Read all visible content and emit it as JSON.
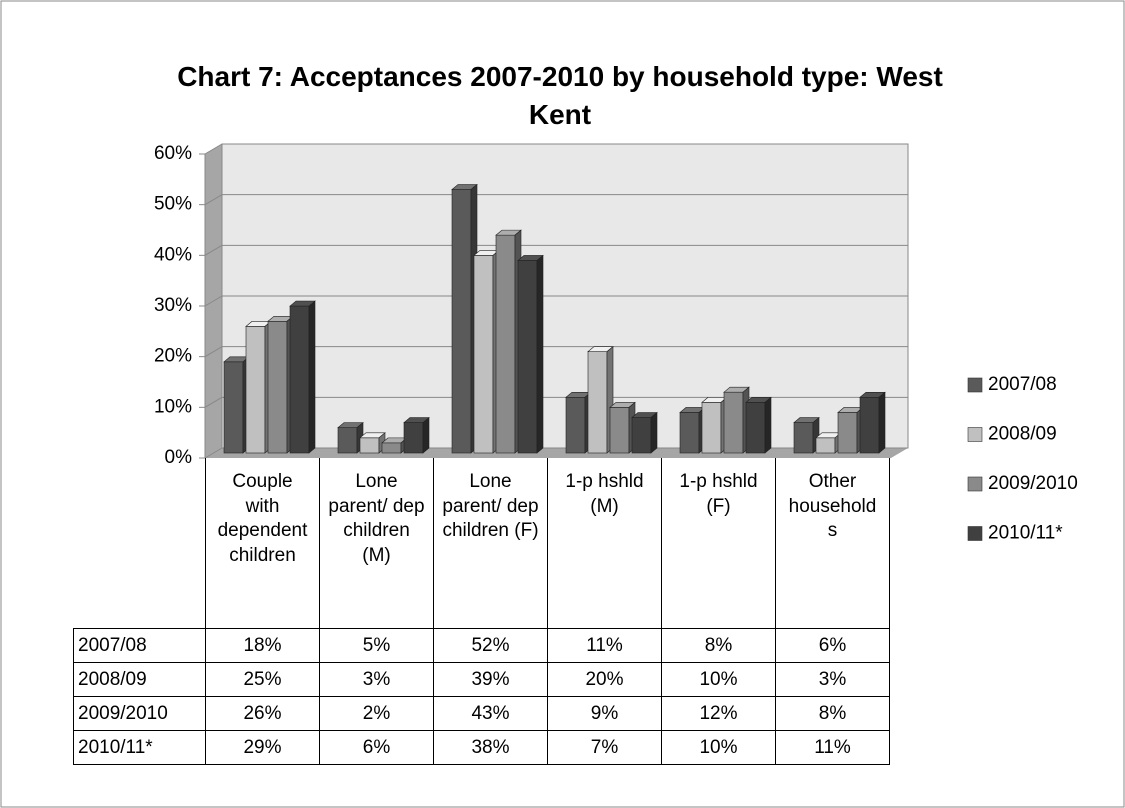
{
  "chart_data": {
    "type": "bar3d",
    "title": "Chart 7: Acceptances 2007-2010 by household type: West Kent",
    "categories": [
      "Couple with dependent children",
      "Lone parent/ dep children (M)",
      "Lone parent/ dep children (F)",
      "1-p hshld (M)",
      "1-p hshld (F)",
      "Other households"
    ],
    "series": [
      {
        "name": "2007/08",
        "color": "#5a5a5a",
        "values": [
          18,
          5,
          52,
          11,
          8,
          6
        ],
        "value_labels": [
          "18%",
          "5%",
          "52%",
          "11%",
          "8%",
          "6%"
        ]
      },
      {
        "name": "2008/09",
        "color": "#c0c0c0",
        "values": [
          25,
          3,
          39,
          20,
          10,
          3
        ],
        "value_labels": [
          "25%",
          "3%",
          "39%",
          "20%",
          "10%",
          "3%"
        ]
      },
      {
        "name": "2009/2010",
        "color": "#8a8a8a",
        "values": [
          26,
          2,
          43,
          9,
          12,
          8
        ],
        "value_labels": [
          "26%",
          "2%",
          "43%",
          "9%",
          "12%",
          "8%"
        ]
      },
      {
        "name": "2010/11*",
        "color": "#404040",
        "values": [
          29,
          6,
          38,
          7,
          10,
          11
        ],
        "value_labels": [
          "29%",
          "6%",
          "38%",
          "7%",
          "10%",
          "11%"
        ]
      }
    ],
    "ylim": [
      0,
      60
    ],
    "yticks": [
      {
        "value": 0,
        "label": "0%"
      },
      {
        "value": 10,
        "label": "10%"
      },
      {
        "value": 20,
        "label": "20%"
      },
      {
        "value": 30,
        "label": "30%"
      },
      {
        "value": 40,
        "label": "40%"
      },
      {
        "value": 50,
        "label": "50%"
      },
      {
        "value": 60,
        "label": "60%"
      }
    ],
    "grid": true
  }
}
